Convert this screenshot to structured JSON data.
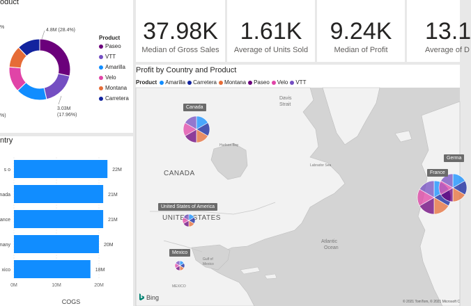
{
  "donut": {
    "title": "oduct",
    "legend_title": "Product",
    "slices": [
      {
        "name": "Paseo",
        "value": 28.4,
        "color": "#6b007b"
      },
      {
        "name": "VTT",
        "value": 17.96,
        "color": "#744ec2"
      },
      {
        "name": "Amarilla",
        "value": 16.5,
        "color": "#118dff"
      },
      {
        "name": "Velo",
        "value": 13.5,
        "color": "#e044a7"
      },
      {
        "name": "Montana",
        "value": 11.5,
        "color": "#e66c37"
      },
      {
        "name": "Carretera",
        "value": 12.14,
        "color": "#12239e"
      }
    ],
    "labels": {
      "paseo_value": "4.8M (28.4%)",
      "vtt_value": "3.03M",
      "vtt_pct": "(17.96%)",
      "velo_pct": "%)",
      "other_pct": "%"
    }
  },
  "cards": [
    {
      "value": "37.98K",
      "label": "Median of Gross Sales"
    },
    {
      "value": "1.61K",
      "label": "Average of Units Sold"
    },
    {
      "value": "9.24K",
      "label": "Median of Profit"
    },
    {
      "value": "13.1",
      "label": "Average of D"
    }
  ],
  "bars": {
    "title": "ntry",
    "xlabel": "COGS",
    "chart_data": {
      "type": "bar",
      "orientation": "horizontal",
      "categories": [
        "s o",
        "nada",
        "ance",
        "many",
        "xico"
      ],
      "values": [
        22,
        21,
        21,
        20,
        18
      ],
      "value_labels": [
        "22M",
        "21M",
        "21M",
        "20M",
        "18M"
      ],
      "xticks": [
        "0M",
        "10M",
        "20M"
      ],
      "xlabel": "COGS",
      "color": "#118dff"
    }
  },
  "map": {
    "title": "Profit by Country and Product",
    "legend_title": "Product",
    "legend": [
      {
        "name": "Amarilla",
        "color": "#118dff"
      },
      {
        "name": "Carretera",
        "color": "#12239e"
      },
      {
        "name": "Montana",
        "color": "#e66c37"
      },
      {
        "name": "Paseo",
        "color": "#6b007b"
      },
      {
        "name": "Velo",
        "color": "#e044a7"
      },
      {
        "name": "VTT",
        "color": "#744ec2"
      }
    ],
    "region_labels": {
      "canada": "CANADA",
      "usa": "UNITED STATES",
      "davis": "Davis",
      "strait": "Strait",
      "hudson": "Hudson Bay",
      "labrador": "Labrador Sea",
      "atlantic1": "Atlantic",
      "atlantic2": "Ocean",
      "gulf1": "Gulf of",
      "gulf2": "Mexico",
      "mexico": "MEXICO"
    },
    "tooltips": {
      "canada": "Canada",
      "usa": "United States of America",
      "mexico": "Mexico",
      "france": "France",
      "germany": "Germa"
    },
    "bing": "Bing",
    "copyright": "© 2021 TomTom, © 2021 Microsoft C"
  }
}
